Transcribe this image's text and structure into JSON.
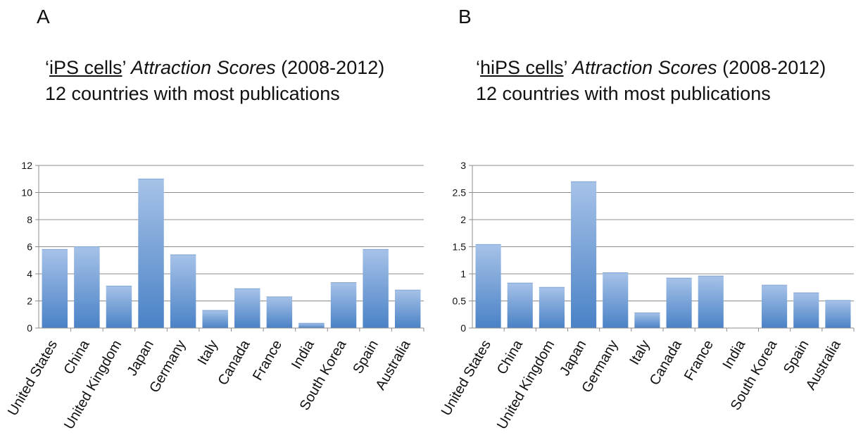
{
  "chart_data": [
    {
      "type": "bar",
      "panel_label": "A",
      "title_parts": {
        "open_quote": "‘",
        "underlined": "iPS cells",
        "close_quote": "’ ",
        "italic": "Attraction Scores",
        "rest": " (2008-2012)"
      },
      "subtitle": "12 countries with most publications",
      "categories": [
        "United States",
        "China",
        "United Kingdom",
        "Japan",
        "Germany",
        "Italy",
        "Canada",
        "France",
        "India",
        "South Korea",
        "Spain",
        "Australia"
      ],
      "values": [
        5.8,
        6.0,
        3.1,
        11.0,
        5.4,
        1.3,
        2.9,
        2.3,
        0.35,
        3.35,
        5.8,
        2.8
      ],
      "ylim": [
        0,
        12
      ],
      "yticks": [
        "0",
        "2",
        "4",
        "6",
        "8",
        "10",
        "12"
      ],
      "ytick_values": [
        0,
        2,
        4,
        6,
        8,
        10,
        12
      ],
      "grid": true,
      "bar_color_top": "#a6c2e8",
      "bar_color_bottom": "#4a82c6"
    },
    {
      "type": "bar",
      "panel_label": "B",
      "title_parts": {
        "open_quote": "‘",
        "underlined": "hiPS cells",
        "close_quote": "’ ",
        "italic": "Attraction Scores",
        "rest": " (2008-2012)"
      },
      "subtitle": "12 countries with most publications",
      "categories": [
        "United States",
        "China",
        "United Kingdom",
        "Japan",
        "Germany",
        "Italy",
        "Canada",
        "France",
        "India",
        "South Korea",
        "Spain",
        "Australia"
      ],
      "values": [
        1.54,
        0.83,
        0.75,
        2.7,
        1.02,
        0.28,
        0.92,
        0.96,
        0.0,
        0.79,
        0.65,
        0.51
      ],
      "ylim": [
        0,
        3
      ],
      "yticks": [
        "0",
        "0.5",
        "1",
        "1.5",
        "2",
        "2.5",
        "3"
      ],
      "ytick_values": [
        0,
        0.5,
        1,
        1.5,
        2,
        2.5,
        3
      ],
      "grid": true,
      "bar_color_top": "#a6c2e8",
      "bar_color_bottom": "#4a82c6"
    }
  ]
}
